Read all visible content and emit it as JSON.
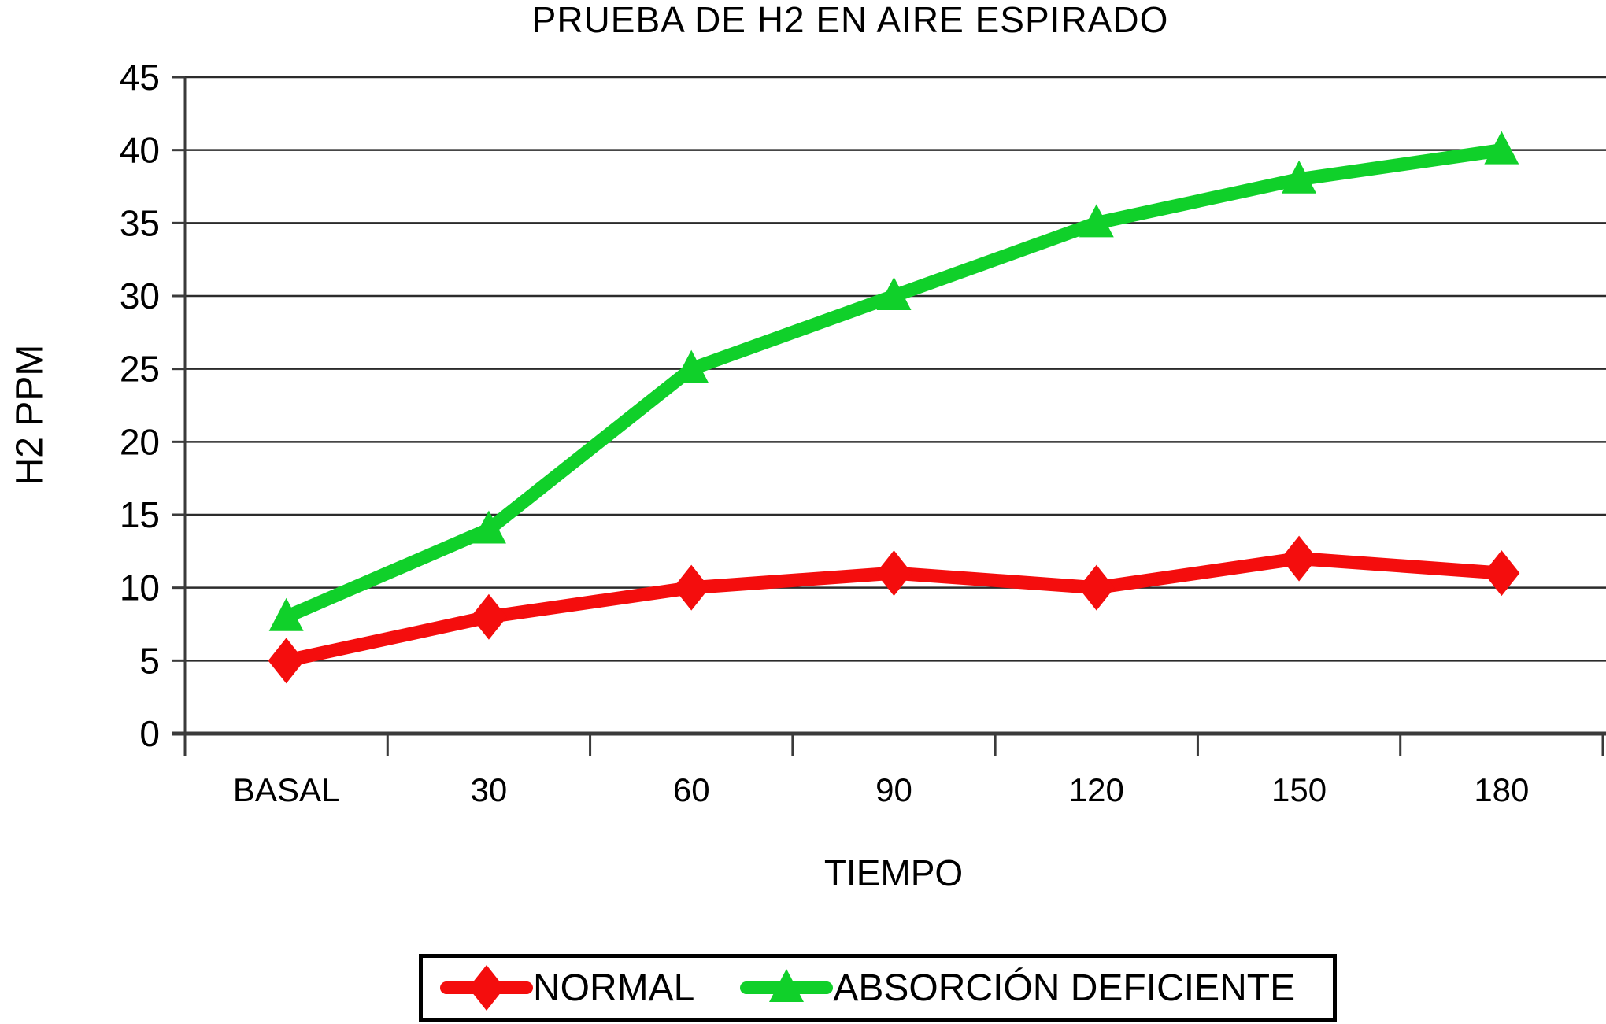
{
  "chart_data": {
    "type": "line",
    "title": "PRUEBA DE H2 EN AIRE ESPIRADO",
    "xlabel": "TIEMPO",
    "ylabel": "H2 PPM",
    "categories": [
      "BASAL",
      "30",
      "60",
      "90",
      "120",
      "150",
      "180"
    ],
    "yticks": [
      0,
      5,
      10,
      15,
      20,
      25,
      30,
      35,
      40,
      45
    ],
    "ylim": [
      0,
      45
    ],
    "grid": "horizontal-only",
    "legend_position": "bottom",
    "colors": {
      "background": "#ffffff",
      "text": "#000000",
      "gridline": "#2b2b2b",
      "axis": "#3a3a3a",
      "normal": "#f40d0d",
      "absorcion_deficiente": "#10d02a"
    },
    "series": [
      {
        "name": "NORMAL",
        "marker": "diamond",
        "color": "#f40d0d",
        "values": [
          5,
          8,
          10,
          11,
          10,
          12,
          11
        ]
      },
      {
        "name": "ABSORCIÓN DEFICIENTE",
        "marker": "triangle",
        "color": "#10d02a",
        "values": [
          8,
          14,
          25,
          30,
          35,
          38,
          40
        ]
      }
    ]
  }
}
